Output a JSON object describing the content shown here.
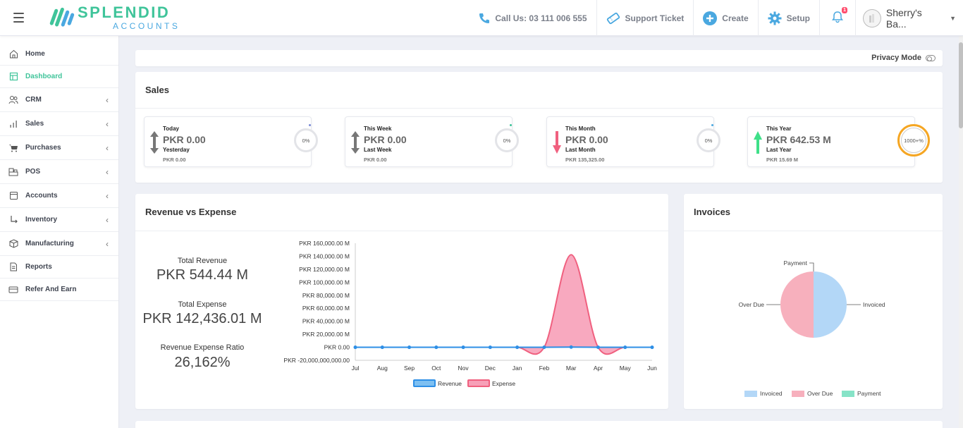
{
  "header": {
    "brand_main": "SPLENDID",
    "brand_sub": "ACCOUNTS",
    "call_us": "Call Us: 03 111 006 555",
    "support_ticket": "Support Ticket",
    "create": "Create",
    "setup": "Setup",
    "notification_count": "1",
    "user_name": "Sherry's Ba..."
  },
  "sidebar": {
    "items": [
      {
        "label": "Home"
      },
      {
        "label": "Dashboard"
      },
      {
        "label": "CRM"
      },
      {
        "label": "Sales"
      },
      {
        "label": "Purchases"
      },
      {
        "label": "POS"
      },
      {
        "label": "Accounts"
      },
      {
        "label": "Inventory"
      },
      {
        "label": "Manufacturing"
      },
      {
        "label": "Reports"
      },
      {
        "label": "Refer And Earn"
      }
    ]
  },
  "privacy": {
    "label": "Privacy Mode"
  },
  "sales": {
    "title": "Sales",
    "boxes": [
      {
        "label": "Today",
        "value": "PKR 0.00",
        "prev_label": "Yesterday",
        "prev_value": "PKR 0.00",
        "percent": "0%"
      },
      {
        "label": "This Week",
        "value": "PKR 0.00",
        "prev_label": "Last Week",
        "prev_value": "PKR 0.00",
        "percent": "0%"
      },
      {
        "label": "This Month",
        "value": "PKR 0.00",
        "prev_label": "Last Month",
        "prev_value": "PKR 135,325.00",
        "percent": "0%"
      },
      {
        "label": "This Year",
        "value": "PKR 642.53 M",
        "prev_label": "Last Year",
        "prev_value": "PKR 15.69 M",
        "percent": "1000+%"
      }
    ]
  },
  "revenue": {
    "title": "Revenue vs Expense",
    "total_revenue_label": "Total Revenue",
    "total_revenue": "PKR 544.44 M",
    "total_expense_label": "Total Expense",
    "total_expense": "PKR 142,436.01 M",
    "ratio_label": "Revenue Expense Ratio",
    "ratio": "26,162%"
  },
  "invoices": {
    "title": "Invoices"
  },
  "chart_data": [
    {
      "type": "area",
      "title": "Revenue vs Expense",
      "categories": [
        "Jul",
        "Aug",
        "Sep",
        "Oct",
        "Nov",
        "Dec",
        "Jan",
        "Feb",
        "Mar",
        "Apr",
        "May",
        "Jun"
      ],
      "y_tick_labels": [
        "PKR 160,000.00 M",
        "PKR 140,000.00 M",
        "PKR 120,000.00 M",
        "PKR 100,000.00 M",
        "PKR 80,000.00 M",
        "PKR 60,000.00 M",
        "PKR 40,000.00 M",
        "PKR 20,000.00 M",
        "PKR 0.00",
        "PKR -20,000,000,000.00"
      ],
      "y_ticks": [
        160000,
        140000,
        120000,
        100000,
        80000,
        60000,
        40000,
        20000,
        0,
        -20000
      ],
      "ylim": [
        -20000,
        160000
      ],
      "units": "PKR M",
      "series": [
        {
          "name": "Revenue",
          "color": "#2e8fe6",
          "values": [
            0,
            0,
            0,
            0,
            0,
            0,
            0,
            100,
            300,
            100,
            0,
            0
          ]
        },
        {
          "name": "Expense",
          "color": "#f0607f",
          "values": [
            0,
            0,
            0,
            0,
            0,
            0,
            0,
            0,
            142436,
            0,
            0,
            0
          ]
        }
      ],
      "legend": "bottom"
    },
    {
      "type": "pie",
      "title": "Invoices",
      "categories": [
        "Invoiced",
        "Over Due",
        "Payment"
      ],
      "values": [
        50,
        50,
        0
      ],
      "colors": [
        "#b3d7f7",
        "#f7b0bd",
        "#86e3c7"
      ],
      "legend": "bottom"
    }
  ]
}
